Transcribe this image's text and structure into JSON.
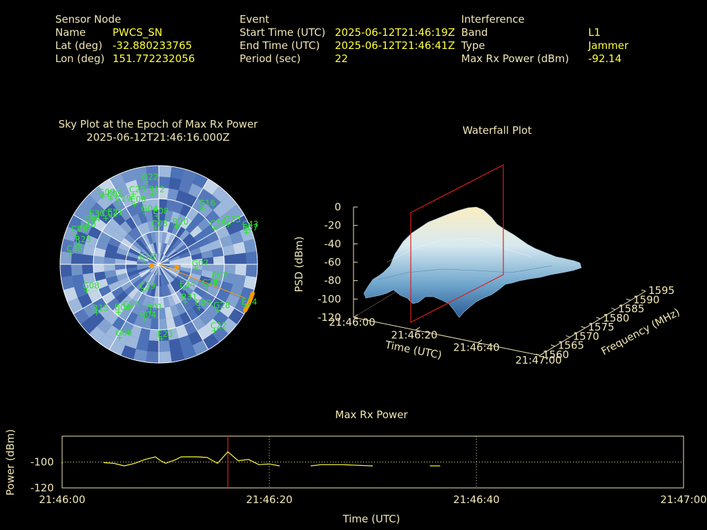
{
  "header": {
    "sensor_node": {
      "title": "Sensor Node",
      "name_label": "Name",
      "name_value": "PWCS_SN",
      "lat_label": "Lat (deg)",
      "lat_value": "-32.880233765",
      "lon_label": "Lon (deg)",
      "lon_value": "151.772232056"
    },
    "event": {
      "title": "Event",
      "start_label": "Start Time (UTC)",
      "start_value": "2025-06-12T21:46:19Z",
      "end_label": "End Time (UTC)",
      "end_value": "2025-06-12T21:46:41Z",
      "period_label": "Period (sec)",
      "period_value": "22"
    },
    "interference": {
      "title": "Interference",
      "band_label": "Band",
      "band_value": "L1",
      "type_label": "Type",
      "type_value": "Jammer",
      "max_label": "Max Rx Power (dBm)",
      "max_value": "-92.14"
    }
  },
  "sky_plot": {
    "title_line1": "Sky Plot at the Epoch of Max Rx Power",
    "title_line2": "2025-06-12T21:46:16.000Z",
    "satellites": [
      {
        "id": "G22",
        "az": -9,
        "el": 14
      },
      {
        "id": "C20",
        "az": -20,
        "el": 22
      },
      {
        "id": "R12",
        "az": -5,
        "el": 26
      },
      {
        "id": "G09",
        "az": -40,
        "el": 10
      },
      {
        "id": "C19",
        "az": -33,
        "el": 24
      },
      {
        "id": "E05",
        "az": -22,
        "el": 31
      },
      {
        "id": "G04",
        "az": -15,
        "el": 42
      },
      {
        "id": "E09",
        "az": -36,
        "el": 16
      },
      {
        "id": "E21",
        "az": -45,
        "el": 29
      },
      {
        "id": "E30",
        "az": -55,
        "el": 17
      },
      {
        "id": "C02",
        "az": -49,
        "el": 26
      },
      {
        "id": "C04",
        "az": -60,
        "el": 16
      },
      {
        "id": "C06",
        "az": -70,
        "el": 9
      },
      {
        "id": "E30",
        "az": -65,
        "el": 15
      },
      {
        "id": "R23",
        "az": -76,
        "el": 15
      },
      {
        "id": "C45",
        "az": -83,
        "el": 9
      },
      {
        "id": "C03",
        "az": -5,
        "el": 57
      },
      {
        "id": "E08",
        "az": -2,
        "el": 46
      },
      {
        "id": "G16",
        "az": 38,
        "el": 25
      },
      {
        "id": "R20",
        "az": 25,
        "el": 52
      },
      {
        "id": "C35",
        "az": 57,
        "el": 30
      },
      {
        "id": "G23",
        "az": 60,
        "el": 17
      },
      {
        "id": "C43",
        "az": 68,
        "el": 4
      },
      {
        "id": "E07",
        "az": 70,
        "el": 5
      },
      {
        "id": "E18",
        "az": -80,
        "el": 76
      },
      {
        "id": "C39",
        "az": -150,
        "el": 62
      },
      {
        "id": "E34",
        "az": 135,
        "el": 58
      },
      {
        "id": "C28",
        "az": 116,
        "el": 42
      },
      {
        "id": "R07",
        "az": 106,
        "el": 36
      },
      {
        "id": "G07",
        "az": 96,
        "el": 56
      },
      {
        "id": "G08",
        "az": -110,
        "el": 20
      },
      {
        "id": "R15",
        "az": -128,
        "el": 18
      },
      {
        "id": "C14",
        "az": -145,
        "el": 40
      },
      {
        "id": "B04",
        "az": -140,
        "el": 33
      },
      {
        "id": "R01",
        "az": -170,
        "el": 46
      },
      {
        "id": "R04",
        "az": -165,
        "el": 38
      },
      {
        "id": "G06",
        "az": -152,
        "el": 14
      },
      {
        "id": "R31",
        "az": 145,
        "el": 48
      },
      {
        "id": "C09",
        "az": 137,
        "el": 36
      },
      {
        "id": "G28",
        "az": 128,
        "el": 22
      },
      {
        "id": "C22",
        "az": 140,
        "el": 11
      },
      {
        "id": "E23",
        "az": 178,
        "el": 22
      },
      {
        "id": "E14",
        "az": 116,
        "el": 2
      }
    ],
    "jammer_track_color": "#ff9a00",
    "sat_color": "#2ee32e"
  },
  "waterfall": {
    "title": "Waterfall Plot",
    "zlabel": "PSD (dBm)",
    "zticks": [
      "0",
      "-20",
      "-40",
      "-60",
      "-80",
      "-100",
      "-120"
    ],
    "xlabel": "Time (UTC)",
    "xticks": [
      "21:46:00",
      "21:46:20",
      "21:46:40",
      "21:47:00"
    ],
    "ylabel": "Frequency (MHz)",
    "yticks": [
      "1560",
      "1565",
      "1570",
      "1575",
      "1580",
      "1585",
      "1590",
      "1595"
    ]
  },
  "chart_data": {
    "type": "line",
    "title": "Max Rx Power",
    "xlabel": "Time (UTC)",
    "ylabel": "Power (dBm)",
    "x_ticks": [
      "21:46:00",
      "21:46:20",
      "21:46:40",
      "21:47:00"
    ],
    "y_ticks": [
      "-100",
      "-120"
    ],
    "xlim": [
      0,
      60
    ],
    "ylim": [
      -120,
      -80
    ],
    "marker_time": 16,
    "series": [
      {
        "values": [
          [
            4,
            -100.5
          ],
          [
            5,
            -101
          ],
          [
            6,
            -103
          ],
          [
            7,
            -101
          ],
          [
            8,
            -98
          ],
          [
            9,
            -96
          ],
          [
            9.5,
            -99
          ],
          [
            10,
            -101
          ],
          [
            11,
            -98
          ],
          [
            11.5,
            -96
          ],
          [
            12.5,
            -96
          ],
          [
            13,
            -96
          ],
          [
            14,
            -96.5
          ],
          [
            15,
            -101
          ],
          [
            16,
            -92.1
          ],
          [
            17,
            -99
          ],
          [
            18,
            -98
          ],
          [
            19,
            -102
          ],
          [
            20,
            -101.5
          ],
          [
            21,
            -103
          ]
        ]
      },
      {
        "values": [
          [
            24,
            -103
          ],
          [
            25,
            -102
          ],
          [
            27,
            -102
          ],
          [
            30,
            -103
          ]
        ]
      },
      {
        "values": [
          [
            35.5,
            -103
          ],
          [
            36.5,
            -103
          ]
        ]
      }
    ]
  },
  "colors": {
    "label": "#f0e6b4",
    "value": "#ffff3c",
    "axis": "#f0e6b4",
    "marker": "#e01e1e",
    "line": "#ffff3c"
  }
}
